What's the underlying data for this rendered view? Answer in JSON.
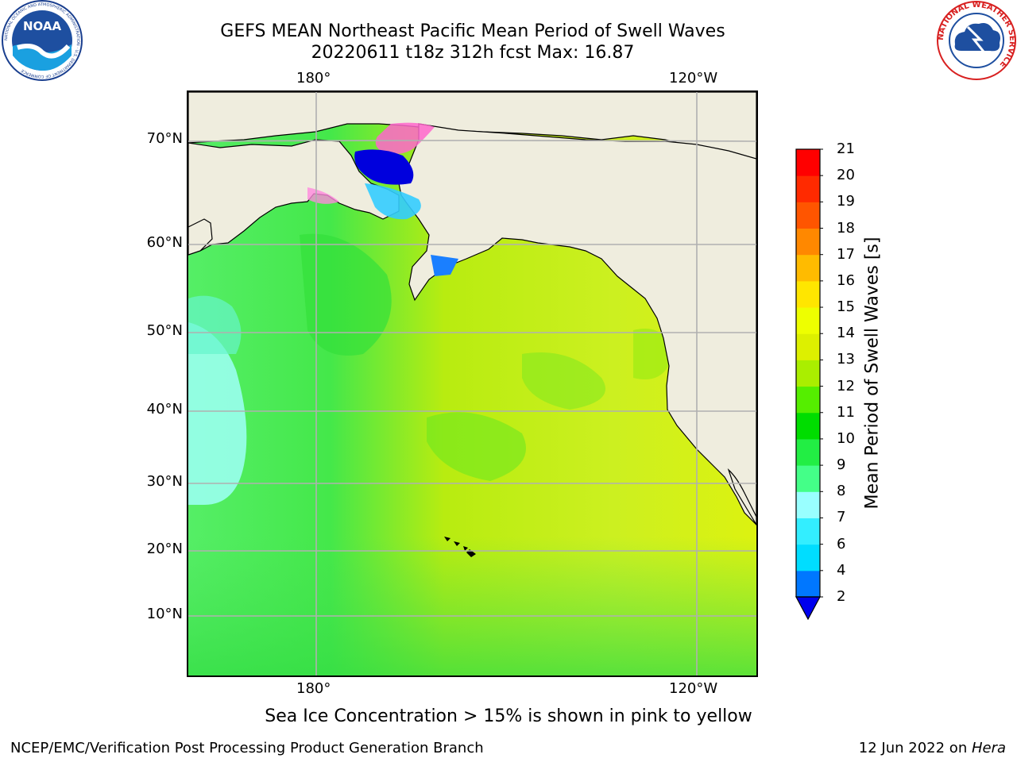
{
  "title": {
    "line1": "GEFS MEAN Northeast Pacific Mean Period of Swell Waves",
    "line2": "20220611 t18z 312h fcst   Max: 16.87"
  },
  "logos": {
    "left": {
      "text": "NOAA",
      "ring_text": "NATIONAL OCEANIC AND ATMOSPHERIC ADMINISTRATION · U.S. DEPARTMENT OF COMMERCE",
      "icon": "noaa-logo"
    },
    "right": {
      "ring_text": "NATIONAL WEATHER SERVICE",
      "icon": "nws-logo"
    }
  },
  "map": {
    "lon_labels_top": [
      "180°",
      "120°W"
    ],
    "lon_labels_bottom": [
      "180°",
      "120°W"
    ],
    "lat_labels": [
      "70°N",
      "60°N",
      "50°N",
      "40°N",
      "30°N",
      "20°N",
      "10°N"
    ],
    "land_color": "#efedde",
    "grid_color": "#b0b0b0",
    "projection": "polar-stereographic"
  },
  "colorbar": {
    "title": "Mean Period of Swell Waves [s]",
    "tick_labels": [
      "2",
      "4",
      "6",
      "7",
      "8",
      "9",
      "10",
      "11",
      "12",
      "13",
      "14",
      "15",
      "16",
      "17",
      "18",
      "19",
      "20",
      "21"
    ],
    "extend": "min",
    "under_color": "#0000ee",
    "colors": [
      "#0077ff",
      "#00ddff",
      "#33eeff",
      "#99ffff",
      "#44ff88",
      "#22ee44",
      "#00dd00",
      "#55ee00",
      "#aaee00",
      "#ddf000",
      "#eeff00",
      "#ffe600",
      "#ffbb00",
      "#ff8800",
      "#ff5500",
      "#ff2a00",
      "#ff0000"
    ]
  },
  "footer": {
    "note": "Sea Ice Concentration > 15% is shown in pink to yellow",
    "credit_left": "NCEP/EMC/Verification Post Processing Product Generation Branch",
    "credit_right_date": "12 Jun 2022 on ",
    "credit_right_host": "Hera"
  }
}
